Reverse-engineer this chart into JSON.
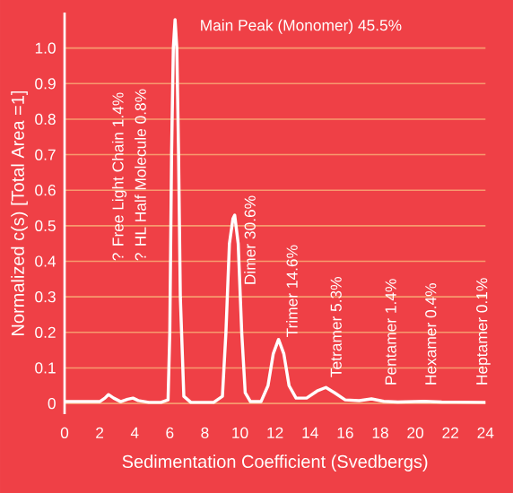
{
  "chart_data": {
    "type": "line",
    "xlabel": "Sedimentation Coefficient (Svedbergs)",
    "ylabel": "Normalized c(s) [Total Area =1]",
    "x": [
      0,
      1,
      2,
      2.3,
      2.5,
      2.8,
      3.2,
      3.6,
      3.9,
      4.2,
      4.8,
      5.5,
      5.9,
      6.0,
      6.1,
      6.2,
      6.3,
      6.4,
      6.5,
      6.6,
      6.8,
      7.2,
      8.5,
      9.0,
      9.2,
      9.4,
      9.6,
      9.7,
      9.9,
      10.1,
      10.3,
      10.6,
      11.2,
      11.6,
      11.9,
      12.2,
      12.5,
      12.8,
      13.2,
      13.8,
      14.4,
      14.9,
      15.4,
      16.0,
      16.8,
      17.5,
      18.2,
      19,
      20.5,
      21.5,
      24
    ],
    "series": [
      {
        "color": "#ffffff",
        "values": [
          0.005,
          0.005,
          0.005,
          0.015,
          0.025,
          0.015,
          0.005,
          0.012,
          0.015,
          0.008,
          0.003,
          0.003,
          0.01,
          0.2,
          0.7,
          1.0,
          1.08,
          1.0,
          0.7,
          0.3,
          0.02,
          0.003,
          0.003,
          0.02,
          0.2,
          0.45,
          0.52,
          0.53,
          0.45,
          0.2,
          0.03,
          0.005,
          0.005,
          0.05,
          0.14,
          0.18,
          0.14,
          0.05,
          0.015,
          0.015,
          0.035,
          0.045,
          0.03,
          0.01,
          0.008,
          0.013,
          0.006,
          0.004,
          0.006,
          0.004,
          0.003
        ]
      }
    ],
    "xlim": [
      0,
      24
    ],
    "xticks": [
      0,
      2,
      4,
      6,
      8,
      10,
      12,
      14,
      16,
      18,
      20,
      22,
      24
    ],
    "ylim": [
      -0.03,
      1.1
    ],
    "yticks": [
      0,
      0.1,
      0.2,
      0.3,
      0.4,
      0.5,
      0.6,
      0.7,
      0.8,
      0.9,
      {
        "value": 1,
        "label": "1.0"
      }
    ],
    "grid": "y",
    "marker": "none",
    "line_style": "solid",
    "annotations": [
      "? Free Light Chain 1.4%",
      "? HL Half Molecule 0.8%",
      "Main Peak (Monomer) 45.5%",
      "Dimer 30.6%",
      "Trimer 14.6%",
      "Tetramer 5.3%",
      "Pentamer 1.4%",
      "Hexamer 0.4%",
      "Heptamer 0.1%"
    ]
  }
}
